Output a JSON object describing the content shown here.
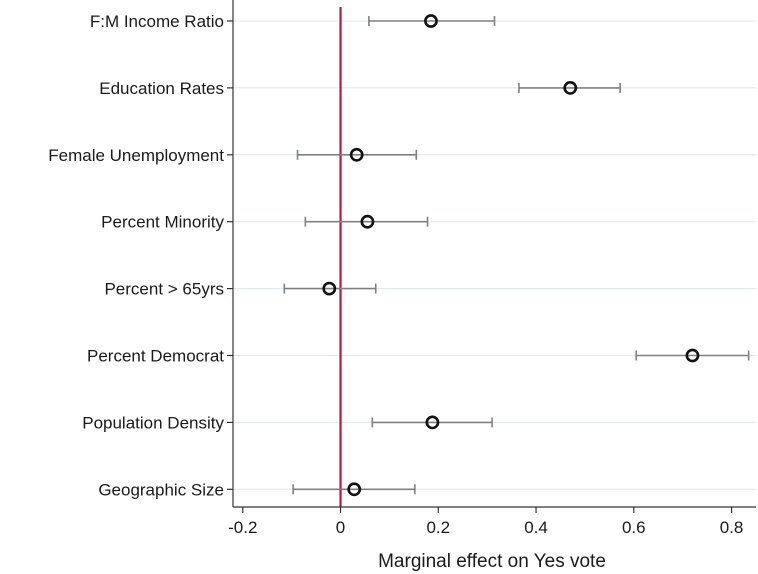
{
  "chart_data": {
    "type": "scatter",
    "title": "",
    "xlabel": "Marginal effect on Yes vote",
    "ylabel": "",
    "xlim": [
      -0.22,
      0.85
    ],
    "xticks": [
      -0.2,
      0,
      0.2,
      0.4,
      0.6,
      0.8
    ],
    "xtick_labels": [
      "-0.2",
      "0",
      "0.2",
      "0.4",
      "0.6",
      "0.8"
    ],
    "reference_line": {
      "x": 0,
      "color": "#c0143c"
    },
    "grid": "horizontal",
    "categories": [
      "F:M Income Ratio",
      "Education Rates",
      "Female Unemployment",
      "Percent Minority",
      "Percent > 65yrs",
      "Percent Democrat",
      "Population Density",
      "Geographic Size"
    ],
    "estimates": [
      0.185,
      0.47,
      0.033,
      0.055,
      -0.023,
      0.72,
      0.188,
      0.028
    ],
    "ci_lower": [
      0.058,
      0.365,
      -0.088,
      -0.072,
      -0.115,
      0.605,
      0.065,
      -0.097
    ],
    "ci_upper": [
      0.315,
      0.572,
      0.155,
      0.178,
      0.072,
      0.835,
      0.31,
      0.152
    ]
  }
}
